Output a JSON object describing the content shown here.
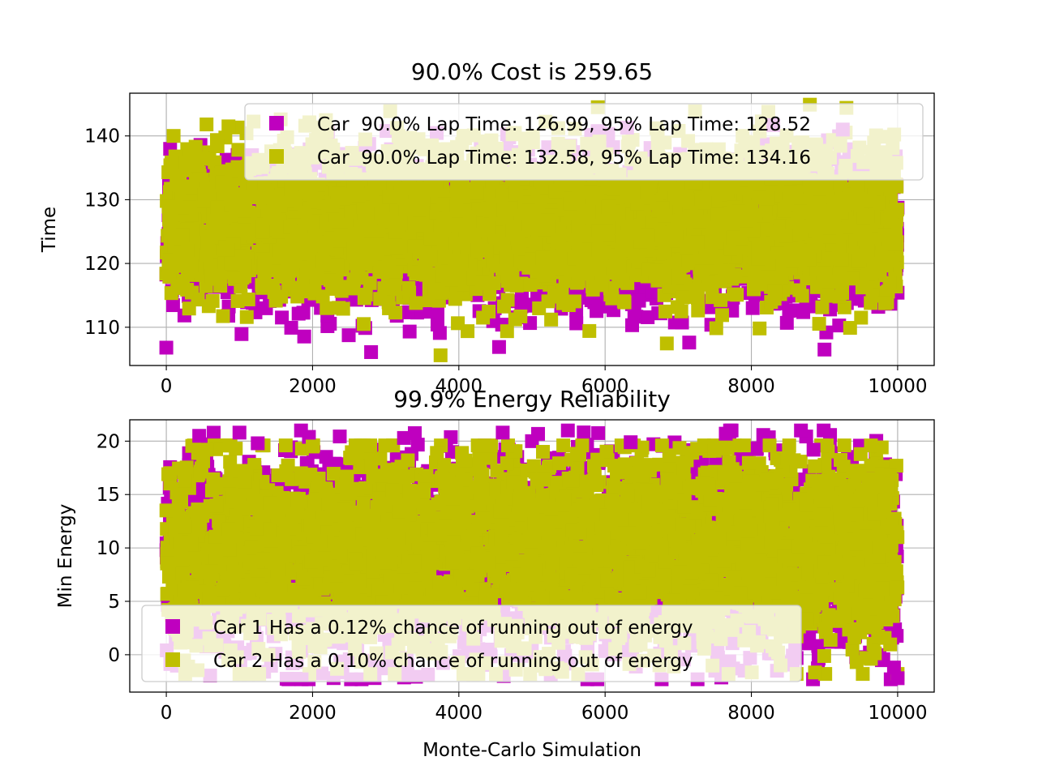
{
  "chart_data": [
    {
      "type": "scatter",
      "title": "90.0% Cost is 259.65",
      "xlabel": "",
      "ylabel": "Time",
      "xlim": [
        -500,
        10500
      ],
      "ylim": [
        104,
        146.7
      ],
      "xticks": [
        0,
        2000,
        4000,
        6000,
        8000,
        10000
      ],
      "yticks": [
        110,
        120,
        130,
        140
      ],
      "grid": true,
      "legend": "upper right",
      "marker": "square",
      "n_points": 10000,
      "series": [
        {
          "name": "Car  90.0% Lap Time: 126.99, 95% Lap Time: 128.52",
          "color": "#bf00bf",
          "core_range": [
            116,
            134
          ],
          "min": 106.5,
          "max": 142
        },
        {
          "name": "Car  90.0% Lap Time: 132.58, 95% Lap Time: 134.16",
          "color": "#bfbf00",
          "core_range": [
            117,
            136
          ],
          "min": 105.5,
          "max": 145
        }
      ],
      "outliers": [
        {
          "s": 0,
          "x": 0,
          "y": 106.8
        },
        {
          "s": 0,
          "x": 2800,
          "y": 106.1
        },
        {
          "s": 0,
          "x": 7150,
          "y": 107.6
        },
        {
          "s": 0,
          "x": 9000,
          "y": 106.5
        },
        {
          "s": 0,
          "x": 4550,
          "y": 106.9
        },
        {
          "s": 0,
          "x": 8300,
          "y": 141.7
        },
        {
          "s": 0,
          "x": 9250,
          "y": 141.0
        },
        {
          "s": 0,
          "x": 6300,
          "y": 141.3
        },
        {
          "s": 1,
          "x": 3750,
          "y": 105.6
        },
        {
          "s": 1,
          "x": 550,
          "y": 141.8
        },
        {
          "s": 1,
          "x": 100,
          "y": 140.0
        },
        {
          "s": 1,
          "x": 850,
          "y": 141.5
        },
        {
          "s": 1,
          "x": 1900,
          "y": 141.6
        },
        {
          "s": 1,
          "x": 5900,
          "y": 144.5
        },
        {
          "s": 1,
          "x": 8800,
          "y": 144.9
        },
        {
          "s": 1,
          "x": 9300,
          "y": 144.4
        },
        {
          "s": 1,
          "x": 6700,
          "y": 141.2
        },
        {
          "s": 1,
          "x": 1100,
          "y": 111.6
        },
        {
          "s": 1,
          "x": 2700,
          "y": 110.5
        },
        {
          "s": 1,
          "x": 7600,
          "y": 111.9
        },
        {
          "s": 1,
          "x": 9500,
          "y": 111.5
        },
        {
          "s": 1,
          "x": 9350,
          "y": 109.9
        }
      ]
    },
    {
      "type": "scatter",
      "title": "99.9% Energy Reliability",
      "xlabel": "Monte-Carlo Simulation",
      "ylabel": "Min Energy",
      "xlim": [
        -500,
        10500
      ],
      "ylim": [
        -3.5,
        22
      ],
      "xticks": [
        0,
        2000,
        4000,
        6000,
        8000,
        10000
      ],
      "yticks": [
        0,
        5,
        10,
        15,
        20
      ],
      "grid": true,
      "legend": "lower left",
      "marker": "square",
      "n_points": 10000,
      "series": [
        {
          "name": "Car 1 Has a 0.12% chance of running out of energy",
          "color": "#bf00bf",
          "core_range": [
            2,
            16.5
          ],
          "min": -2.3,
          "max": 21
        },
        {
          "name": "Car 2 Has a 0.10% chance of running out of energy",
          "color": "#bfbf00",
          "core_range": [
            2.5,
            17
          ],
          "min": -1.8,
          "max": 19.6
        }
      ],
      "outliers": [
        {
          "s": 0,
          "x": 450,
          "y": 20.5
        },
        {
          "s": 0,
          "x": 1000,
          "y": 20.8
        },
        {
          "s": 0,
          "x": 1250,
          "y": 19.8
        },
        {
          "s": 0,
          "x": 1950,
          "y": 20.4
        },
        {
          "s": 0,
          "x": 3250,
          "y": 20.3
        },
        {
          "s": 0,
          "x": 4600,
          "y": 20.8
        },
        {
          "s": 0,
          "x": 5000,
          "y": 20.0
        },
        {
          "s": 0,
          "x": 6350,
          "y": 19.9
        },
        {
          "s": 0,
          "x": 7650,
          "y": 20.7
        },
        {
          "s": 0,
          "x": 8850,
          "y": 19.2
        },
        {
          "s": 0,
          "x": 1850,
          "y": -2.3
        },
        {
          "s": 0,
          "x": 10000,
          "y": -2.2
        },
        {
          "s": 0,
          "x": 9950,
          "y": -1.2
        },
        {
          "s": 0,
          "x": 8350,
          "y": -1.5
        },
        {
          "s": 1,
          "x": 550,
          "y": 19.2
        },
        {
          "s": 1,
          "x": 950,
          "y": 19.3
        },
        {
          "s": 1,
          "x": 2000,
          "y": 19.5
        },
        {
          "s": 1,
          "x": 3700,
          "y": 18.9
        },
        {
          "s": 1,
          "x": 5150,
          "y": 19.0
        },
        {
          "s": 1,
          "x": 7500,
          "y": 19.1
        },
        {
          "s": 1,
          "x": 1000,
          "y": -1.8
        },
        {
          "s": 1,
          "x": 8400,
          "y": -1.0
        }
      ]
    }
  ]
}
